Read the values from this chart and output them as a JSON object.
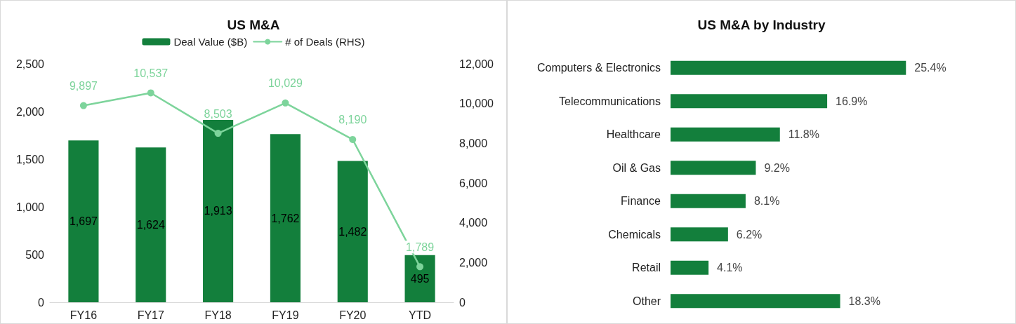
{
  "chart_data": [
    {
      "type": "bar",
      "title": "US M&A",
      "categories": [
        "FY16",
        "FY17",
        "FY18",
        "FY19",
        "FY20",
        "YTD"
      ],
      "series": [
        {
          "name": "Deal Value ($B)",
          "type": "bar",
          "color": "#137f3c",
          "values": [
            1697,
            1624,
            1913,
            1762,
            1482,
            495
          ],
          "value_labels": [
            "1,697",
            "1,624",
            "1,913",
            "1,762",
            "1,482",
            "495"
          ]
        },
        {
          "name": "# of Deals (RHS)",
          "type": "line",
          "axis": "y2",
          "color": "#7dd49b",
          "values": [
            9897,
            10537,
            8503,
            10029,
            8190,
            1789
          ],
          "value_labels": [
            "9,897",
            "10,537",
            "8,503",
            "10,029",
            "8,190",
            "1,789"
          ]
        }
      ],
      "ylim": [
        0,
        2500
      ],
      "yticks": [
        0,
        500,
        {
          "value": 1000,
          "label": "1,000"
        },
        {
          "value": 1500,
          "label": "1,500"
        },
        {
          "value": 2000,
          "label": "2,000"
        },
        {
          "value": 2500,
          "label": "2,500"
        }
      ],
      "y2lim": [
        0,
        12000
      ],
      "y2ticks": [
        0,
        {
          "value": 2000,
          "label": "2,000"
        },
        {
          "value": 4000,
          "label": "4,000"
        },
        {
          "value": 6000,
          "label": "6,000"
        },
        {
          "value": 8000,
          "label": "8,000"
        },
        {
          "value": 10000,
          "label": "10,000"
        },
        {
          "value": 12000,
          "label": "12,000"
        }
      ],
      "legend": "top",
      "marker": "circle",
      "line_style": "solid"
    },
    {
      "type": "bar",
      "title": "US M&A by Industry",
      "orientation": "horizontal",
      "categories": [
        "Computers & Electronics",
        "Telecommunications",
        "Healthcare",
        "Oil & Gas",
        "Finance",
        "Chemicals",
        "Retail",
        "Other"
      ],
      "values": [
        25.4,
        16.9,
        11.8,
        9.2,
        8.1,
        6.2,
        4.1,
        18.3
      ],
      "color": "#137f3c",
      "value_labels": [
        "25.4%",
        "16.9%",
        "11.8%",
        "9.2%",
        "8.1%",
        "6.2%",
        "4.1%",
        "18.3%"
      ],
      "tick_labels": "y"
    }
  ]
}
